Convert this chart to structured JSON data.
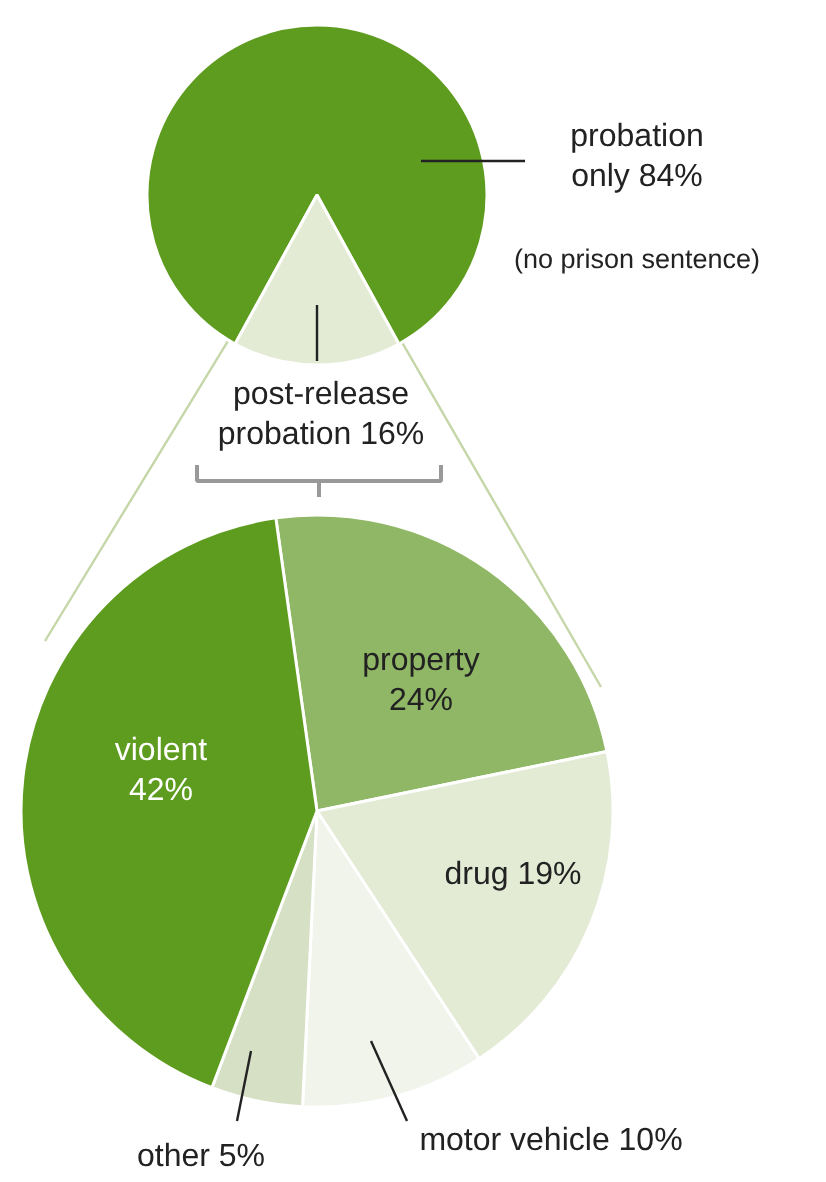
{
  "chart_data": [
    {
      "type": "pie",
      "categories": [
        "probation only",
        "post-release probation"
      ],
      "values": [
        84,
        16
      ],
      "colors": [
        "#5e9c1f",
        "#e3ebd5"
      ],
      "value_labels": [
        "84%",
        "16%"
      ],
      "annotations": [
        "(no prison sentence)"
      ]
    },
    {
      "type": "pie",
      "categories": [
        "property",
        "drug",
        "motor vehicle",
        "other",
        "violent"
      ],
      "values": [
        24,
        19,
        10,
        5,
        42
      ],
      "colors": [
        "#8fb765",
        "#e3ebd5",
        "#f0f4ea",
        "#d6e0c5",
        "#5e9c1f"
      ],
      "value_labels": [
        "24%",
        "19%",
        "10%",
        "5%",
        "42%"
      ]
    }
  ]
}
